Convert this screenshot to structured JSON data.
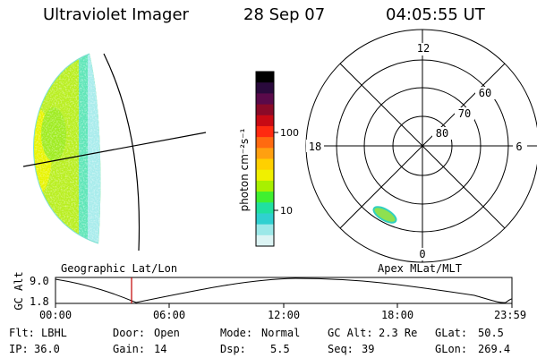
{
  "header": {
    "instrument": "Ultraviolet Imager",
    "date": "28 Sep 07",
    "time": "04:05:55 UT"
  },
  "geo_panel": {
    "label": "Geographic Lat/Lon"
  },
  "colorbar": {
    "unit_label": "photon cm⁻²s⁻¹",
    "ticks": [
      "100",
      "10"
    ],
    "colors": [
      "#000000",
      "#2a0a3c",
      "#5a0a4a",
      "#8a0a28",
      "#c80a14",
      "#ff2a10",
      "#ff6a10",
      "#ffa010",
      "#ffd000",
      "#f0f000",
      "#a8f000",
      "#40f030",
      "#20e0a0",
      "#30d0d0",
      "#9ce8e8",
      "#dcf4f4"
    ]
  },
  "polar_panel": {
    "label": "Apex MLat/MLT",
    "mlt_labels": [
      "12",
      "18",
      "6",
      "0"
    ],
    "mlat_labels": [
      "60",
      "70",
      "80"
    ]
  },
  "altitude_plot": {
    "ylabel": "GC Alt",
    "yticks": [
      "9.0",
      "1.8"
    ],
    "xticks": [
      "00:00",
      "06:00",
      "12:00",
      "18:00",
      "23:59"
    ]
  },
  "status": {
    "flt_label": "Flt:",
    "flt_value": "LBHL",
    "door_label": "Door:",
    "door_value": "Open",
    "mode_label": "Mode:",
    "mode_value": "Normal",
    "gcalt_label": "GC Alt:",
    "gcalt_value": "2.3 Re",
    "glat_label": "GLat:",
    "glat_value": "50.5",
    "ip_label": "IP:",
    "ip_value": "36.0",
    "gain_label": "Gain:",
    "gain_value": "14",
    "dsp_label": "Dsp:",
    "dsp_value": "5.5",
    "seq_label": "Seq:",
    "seq_value": "39",
    "glon_label": "GLon:",
    "glon_value": "269.4"
  }
}
